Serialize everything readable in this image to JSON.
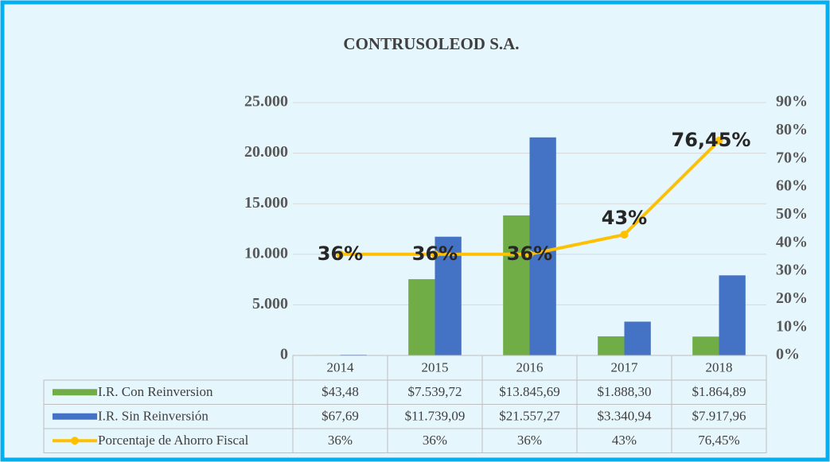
{
  "chart_data": {
    "type": "bar_line_table",
    "title": "CONTRUSOLEOD S.A.",
    "categories": [
      "2014",
      "2015",
      "2016",
      "2017",
      "2018"
    ],
    "series": [
      {
        "name": "I.R. Con Reinversion",
        "color": "#70ad47",
        "values": [
          43.48,
          7539.72,
          13845.69,
          1888.3,
          1864.89
        ],
        "value_labels": [
          "$43,48",
          "$7.539,72",
          "$13.845,69",
          "$1.888,30",
          "$1.864,89"
        ]
      },
      {
        "name": "I.R. Sin Reinversión",
        "color": "#4472c4",
        "values": [
          67.69,
          11739.09,
          21557.27,
          3340.94,
          7917.96
        ],
        "value_labels": [
          "$67,69",
          "$11.739,09",
          "$21.557,27",
          "$3.340,94",
          "$7.917,96"
        ]
      },
      {
        "name": "Porcentaje de Ahorro Fiscal",
        "color": "#ffc000",
        "axis": "y2",
        "values": [
          36,
          36,
          36,
          43,
          76.45
        ],
        "value_labels": [
          "36%",
          "36%",
          "36%",
          "43%",
          "76,45%"
        ]
      }
    ],
    "ylim": [
      0,
      25000
    ],
    "yticks": [
      0,
      {
        "value": 5000,
        "label": "5.000"
      },
      {
        "value": 10000,
        "label": "10.000"
      },
      {
        "value": 15000,
        "label": "15.000"
      },
      {
        "value": 20000,
        "label": "20.000"
      },
      {
        "value": 25000,
        "label": "25.000"
      }
    ],
    "y2lim": [
      0,
      90
    ],
    "y2ticks": [
      {
        "value": 0,
        "label": "0%"
      },
      {
        "value": 10,
        "label": "10%"
      },
      {
        "value": 20,
        "label": "20%"
      },
      {
        "value": 30,
        "label": "30%"
      },
      {
        "value": 40,
        "label": "40%"
      },
      {
        "value": 50,
        "label": "50%"
      },
      {
        "value": 60,
        "label": "60%"
      },
      {
        "value": 70,
        "label": "70%"
      },
      {
        "value": 80,
        "label": "80%"
      },
      {
        "value": 90,
        "label": "90%"
      }
    ],
    "grid": true
  }
}
